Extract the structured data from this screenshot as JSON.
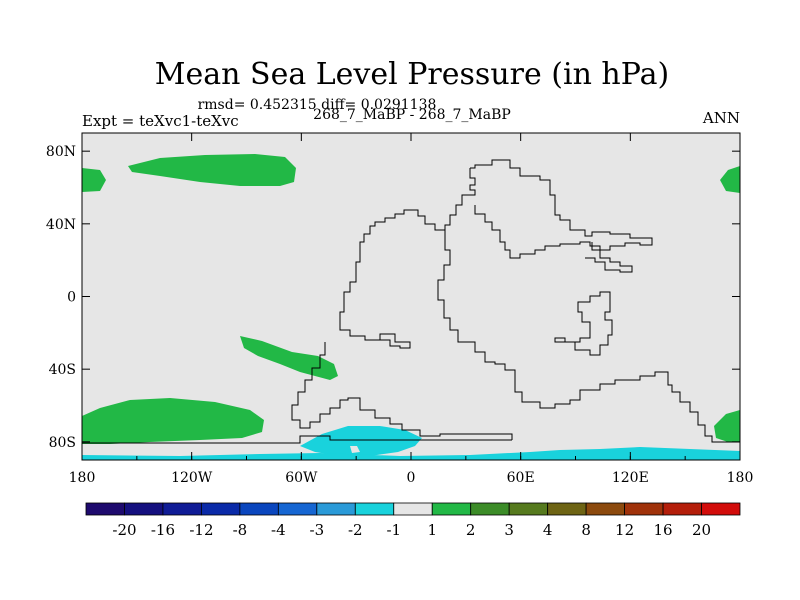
{
  "chart_data": {
    "type": "heatmap",
    "title": "Mean Sea Level Pressure (in hPa)",
    "subtitle_stats": "rmsd= 0.452315 diff= 0.0291138",
    "subtitle_cases": "268_7_MaBP - 268_7_MaBP",
    "left_label": "Expt = teXvc1-teXvc",
    "right_label": "ANN",
    "x_ticks": [
      "180",
      "120W",
      "60W",
      "0",
      "60E",
      "120E",
      "180"
    ],
    "y_ticks": [
      "80N",
      "40N",
      "0",
      "40S",
      "80S"
    ],
    "x_range": [
      -180,
      180
    ],
    "y_range": [
      -90,
      90
    ],
    "colorbar": {
      "labels": [
        "-20",
        "-16",
        "-12",
        "-8",
        "-4",
        "-3",
        "-2",
        "-1",
        "1",
        "2",
        "3",
        "4",
        "8",
        "12",
        "16",
        "20"
      ],
      "colors": [
        "#1e0a6e",
        "#15107f",
        "#101c96",
        "#0a2aa8",
        "#0a46be",
        "#1666d2",
        "#2a9ad8",
        "#19d2dc",
        "#e6e6e6",
        "#22b846",
        "#3c8c28",
        "#567a1e",
        "#6e6414",
        "#8c4a0e",
        "#a0320a",
        "#b41e0a",
        "#d20c0a"
      ]
    },
    "regions": [
      {
        "bin": "1 to 2",
        "color": "#22b846",
        "desc": "north-pacific-band"
      },
      {
        "bin": "1 to 2",
        "color": "#22b846",
        "desc": "arctic-west-edge"
      },
      {
        "bin": "1 to 2",
        "color": "#22b846",
        "desc": "arctic-east-edge"
      },
      {
        "bin": "1 to 2",
        "color": "#22b846",
        "desc": "south-pacific-tongue"
      },
      {
        "bin": "1 to 2",
        "color": "#22b846",
        "desc": "southern-ocean-west"
      },
      {
        "bin": "1 to 2",
        "color": "#22b846",
        "desc": "southern-ocean-east"
      },
      {
        "bin": "-2 to -1",
        "color": "#19d2dc",
        "desc": "antarctic-low-dome"
      },
      {
        "bin": "-2 to -1",
        "color": "#19d2dc",
        "desc": "antarctic-low-band"
      }
    ]
  }
}
